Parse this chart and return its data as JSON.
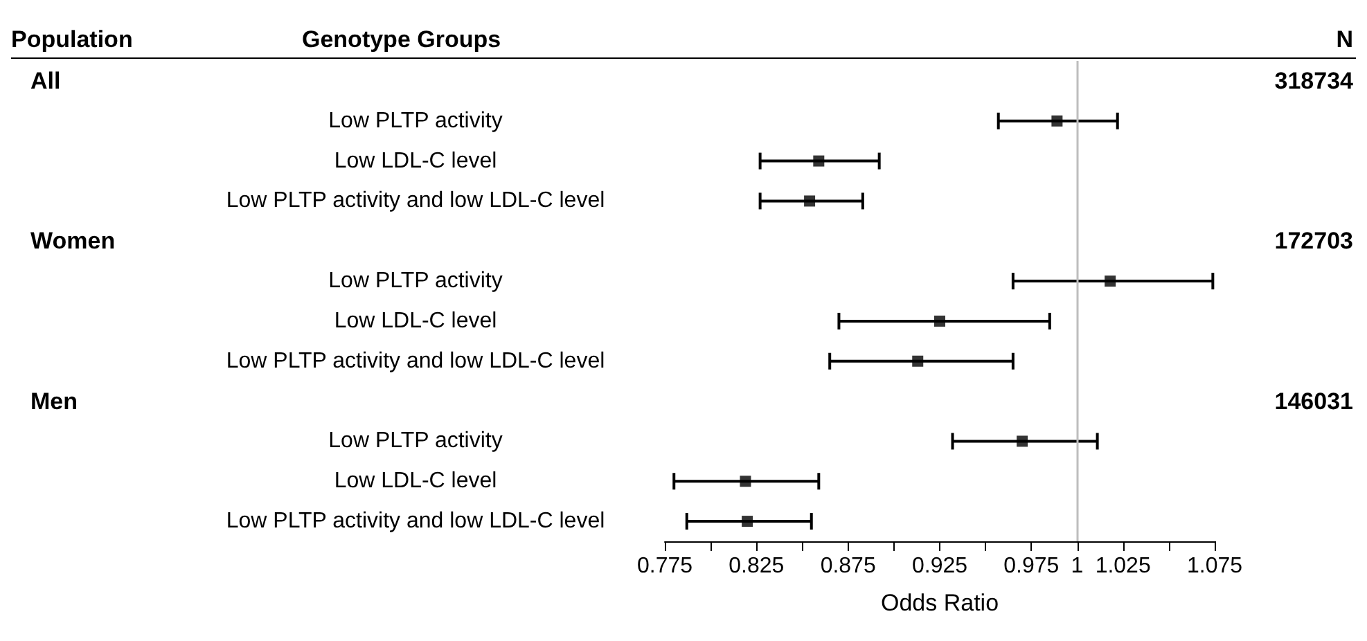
{
  "chart_data": {
    "type": "scatter",
    "orientation": "horizontal",
    "marker": "square",
    "color": "#000000",
    "categories": [
      null,
      "Low PLTP activity",
      "Low LDL-C level",
      "Low PLTP activity and low LDL-C level",
      null,
      "Low PLTP activity",
      "Low LDL-C level",
      "Low PLTP activity and low LDL-C level",
      null,
      "Low PLTP activity",
      "Low LDL-C level",
      "Low PLTP activity and low LDL-C level"
    ],
    "values": [
      null,
      0.989,
      0.859,
      0.854,
      null,
      1.018,
      0.925,
      0.913,
      null,
      0.97,
      0.819,
      0.82
    ],
    "errors": [
      null,
      [
        0.957,
        1.022
      ],
      [
        0.827,
        0.892
      ],
      [
        0.827,
        0.883
      ],
      null,
      [
        0.965,
        1.074
      ],
      [
        0.87,
        0.985
      ],
      [
        0.865,
        0.965
      ],
      null,
      [
        0.932,
        1.011
      ],
      [
        0.78,
        0.859
      ],
      [
        0.787,
        0.855
      ]
    ],
    "xlabel": "Odds Ratio",
    "xlim": [
      0.775,
      1.075
    ],
    "xticks": [
      0.775,
      {
        "value": 0.8,
        "label": null
      },
      0.825,
      {
        "value": 0.85,
        "label": null
      },
      0.875,
      {
        "value": 0.9,
        "label": null
      },
      0.925,
      {
        "value": 0.95,
        "label": null
      },
      0.975,
      1,
      1.025,
      {
        "value": 1.05,
        "label": null
      },
      1.075
    ],
    "ref_lines": [
      {
        "axis": "x",
        "value": 1,
        "color": "#bebebe"
      }
    ],
    "grid": false,
    "annotations": [
      "Population",
      "Genotype Groups",
      "N",
      "All",
      "318734",
      "Women",
      "172703",
      "Men",
      "146031"
    ]
  }
}
